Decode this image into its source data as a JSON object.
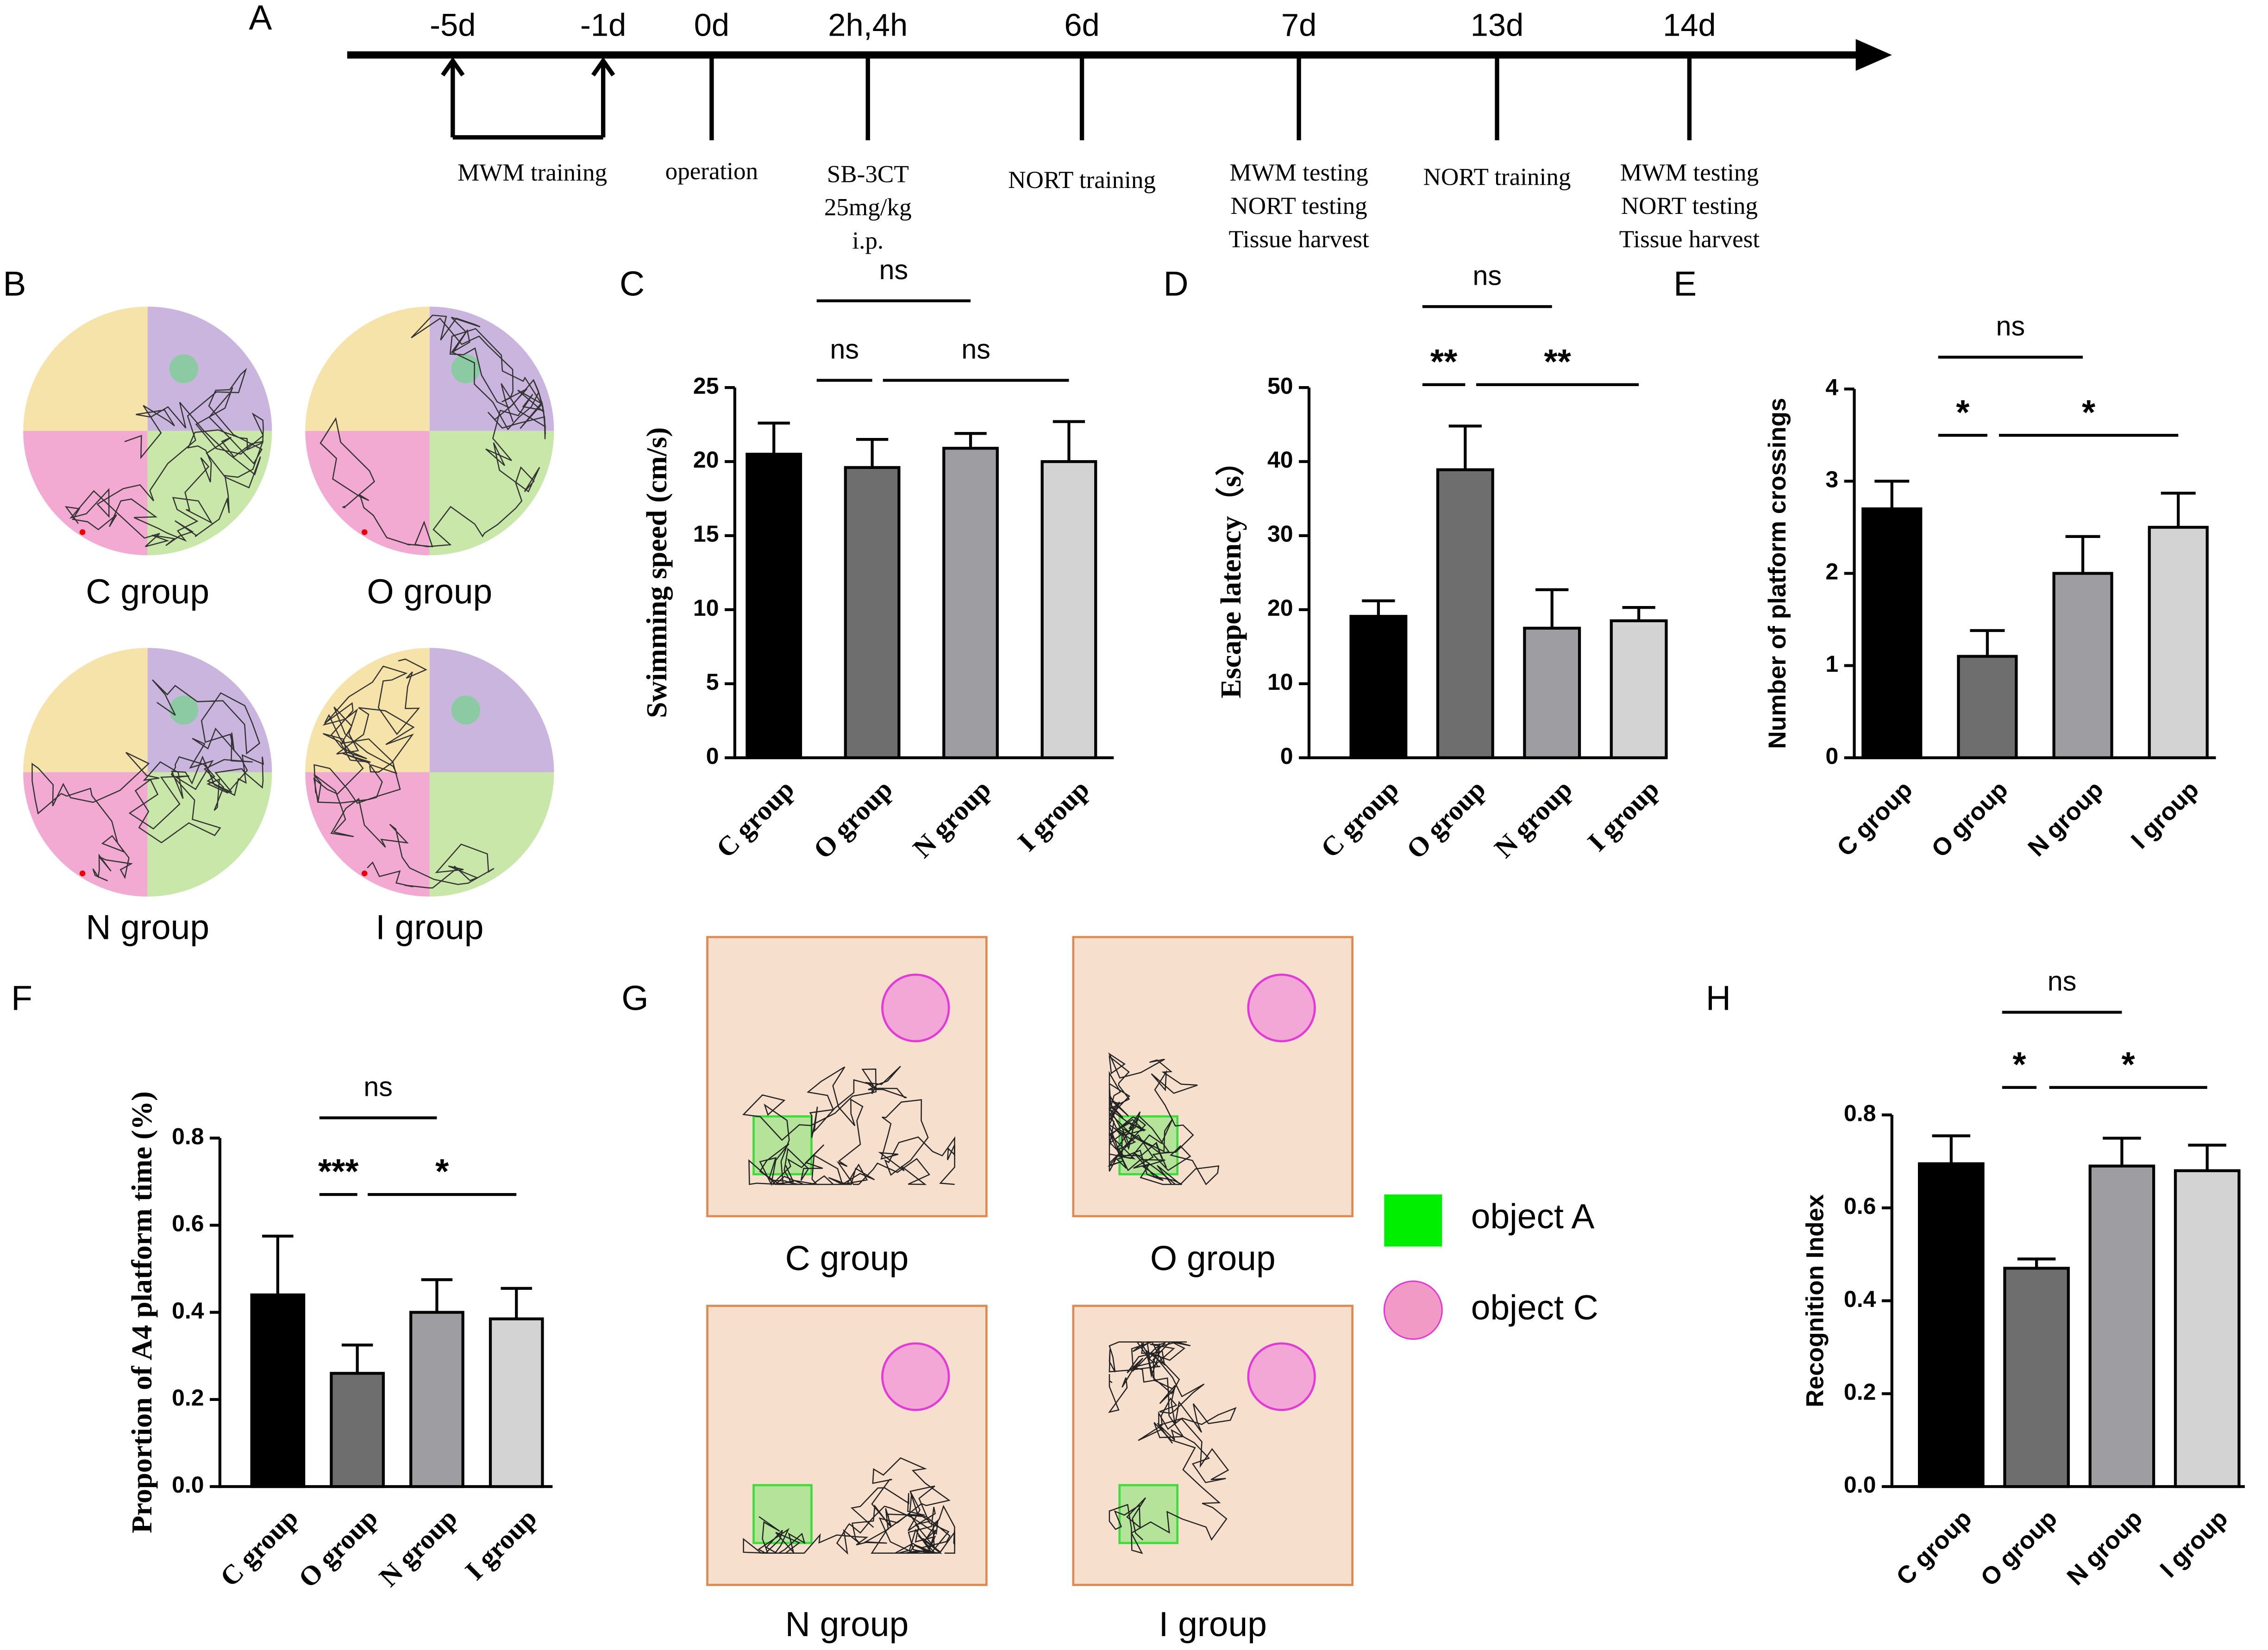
{
  "timeline": {
    "label": "A",
    "times": [
      "-5d",
      "-1d",
      "0d",
      "2h,4h",
      "6d",
      "7d",
      "13d",
      "14d"
    ],
    "events": [
      [
        "MWM training"
      ],
      [
        "operation"
      ],
      [
        "SB-3CT",
        "25mg/kg",
        "i.p."
      ],
      [
        "NORT training"
      ],
      [
        "MWM testing",
        "NORT testing",
        "Tissue harvest"
      ],
      [
        "NORT training"
      ],
      [
        "MWM testing",
        "NORT testing",
        "Tissue harvest"
      ]
    ]
  },
  "mwm_tracks": {
    "label": "B",
    "groups": [
      "C group",
      "O group",
      "N group",
      "I group"
    ]
  },
  "nort_tracks": {
    "label": "G",
    "groups": [
      "C group",
      "O group",
      "N group",
      "I group"
    ],
    "legend": [
      "object A",
      "object C"
    ]
  },
  "chart_data": [
    {
      "type": "bar",
      "label": "C",
      "ylabel": "Swimming speed (cm/s)",
      "categories": [
        "C group",
        "O group",
        "N group",
        "I group"
      ],
      "values": [
        20.5,
        19.6,
        20.9,
        20.0
      ],
      "errors": [
        2.1,
        1.9,
        1.0,
        2.7
      ],
      "colors": [
        "#000000",
        "#6e6e6e",
        "#9d9da2",
        "#d3d3d3"
      ],
      "ylim": [
        0,
        25
      ],
      "yticks": [
        0,
        5,
        10,
        15,
        20,
        25
      ],
      "annotations": [
        "ns",
        "ns",
        "ns"
      ]
    },
    {
      "type": "bar",
      "label": "D",
      "ylabel": "Escape latency（s）",
      "categories": [
        "C group",
        "O group",
        "N group",
        "I group"
      ],
      "values": [
        19.1,
        38.9,
        17.5,
        18.5
      ],
      "errors": [
        2.1,
        5.9,
        5.2,
        1.8
      ],
      "colors": [
        "#000000",
        "#6e6e6e",
        "#9d9da2",
        "#d3d3d3"
      ],
      "ylim": [
        0,
        50
      ],
      "yticks": [
        0,
        10,
        20,
        30,
        40,
        50
      ],
      "annotations": [
        "ns",
        "**",
        "**"
      ]
    },
    {
      "type": "bar",
      "label": "E",
      "ylabel": "Number of platform crossings",
      "categories": [
        "C group",
        "O group",
        "N group",
        "I group"
      ],
      "values": [
        2.7,
        1.1,
        2.0,
        2.5
      ],
      "errors": [
        0.3,
        0.28,
        0.4,
        0.37
      ],
      "colors": [
        "#000000",
        "#6e6e6e",
        "#9d9da2",
        "#d3d3d3"
      ],
      "ylim": [
        0,
        4
      ],
      "yticks": [
        0,
        1,
        2,
        3,
        4
      ],
      "annotations": [
        "ns",
        "*",
        "*"
      ]
    },
    {
      "type": "bar",
      "label": "F",
      "ylabel": "Proportion of A4 platform time (%)",
      "categories": [
        "C group",
        "O group",
        "N group",
        "I group"
      ],
      "values": [
        0.44,
        0.26,
        0.4,
        0.385
      ],
      "errors": [
        0.135,
        0.065,
        0.075,
        0.07
      ],
      "colors": [
        "#000000",
        "#6e6e6e",
        "#9d9da2",
        "#d3d3d3"
      ],
      "ylim": [
        0,
        0.8
      ],
      "yticks": [
        {
          "value": 0,
          "label": "0.0"
        },
        0.2,
        0.4,
        0.6,
        0.8
      ],
      "annotations": [
        "ns",
        "***",
        "*"
      ]
    },
    {
      "type": "bar",
      "label": "H",
      "ylabel": "Recognition Index",
      "categories": [
        "C group",
        "O group",
        "N group",
        "I group"
      ],
      "values": [
        0.695,
        0.47,
        0.69,
        0.68
      ],
      "errors": [
        0.06,
        0.02,
        0.06,
        0.055
      ],
      "colors": [
        "#000000",
        "#6e6e6e",
        "#9d9da2",
        "#d3d3d3"
      ],
      "ylim": [
        0,
        0.8
      ],
      "yticks": [
        {
          "value": 0,
          "label": "0.0"
        },
        0.2,
        0.4,
        0.6,
        0.8
      ],
      "annotations": [
        "ns",
        "*",
        "*"
      ]
    }
  ]
}
